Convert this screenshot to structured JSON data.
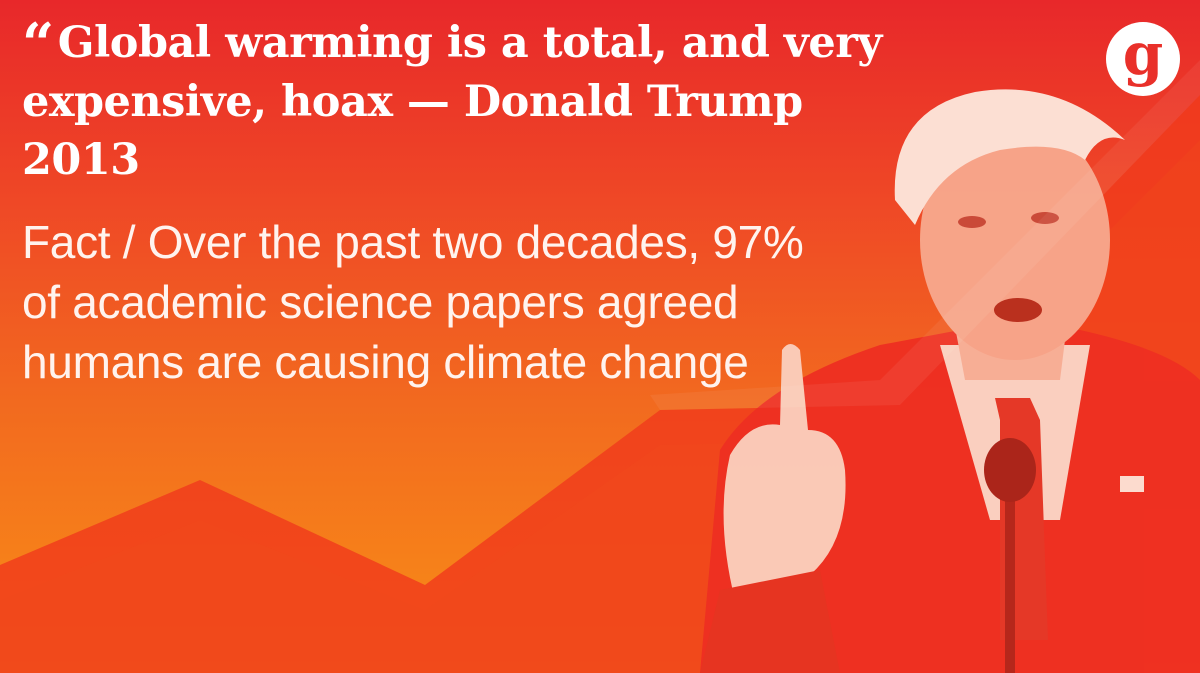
{
  "headline": {
    "quote_mark": "“",
    "text": "Global warming is a total, and very expensive, hoax — Donald Trump 2013"
  },
  "fact": {
    "text": "Fact / Over the past two decades, 97% of academic science papers agreed humans are causing climate change"
  },
  "logo": {
    "letter": "g"
  },
  "colors": {
    "top": "#e8282a",
    "bottom": "#f98f16",
    "overlay": "#f0321a",
    "text": "#ffffff"
  },
  "photo": {
    "subject_icon": "speaker-photo"
  }
}
